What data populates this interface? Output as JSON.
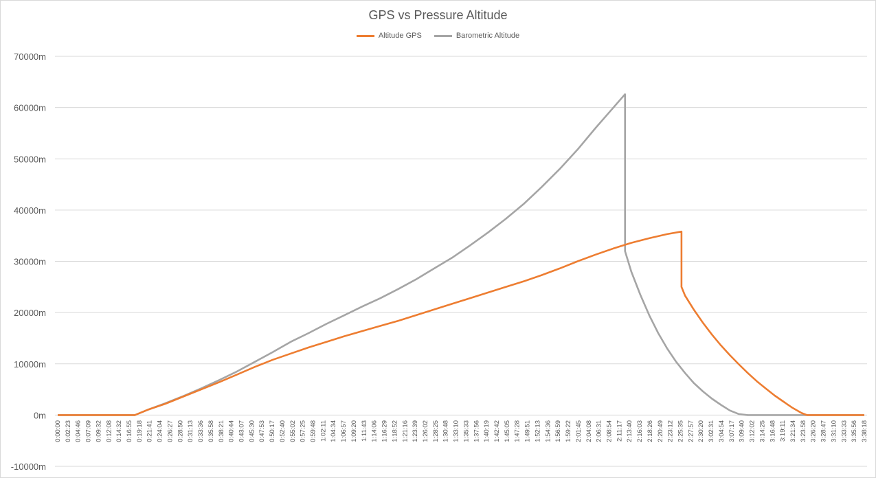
{
  "chart_data": {
    "type": "line",
    "title": "GPS vs Pressure Altitude",
    "xlabel": "",
    "ylabel": "",
    "ylim": [
      -10000,
      70000
    ],
    "y_ticks": [
      "-10000m",
      "0m",
      "10000m",
      "20000m",
      "30000m",
      "40000m",
      "50000m",
      "60000m",
      "70000m"
    ],
    "y_tick_values": [
      -10000,
      0,
      10000,
      20000,
      30000,
      40000,
      50000,
      60000,
      70000
    ],
    "grid": true,
    "legend_position": "top",
    "x_tick_labels": [
      "0:00:00",
      "0:02:23",
      "0:04:46",
      "0:07:09",
      "0:09:32",
      "0:12:08",
      "0:14:32",
      "0:16:55",
      "0:19:18",
      "0:21:41",
      "0:24:04",
      "0:26:27",
      "0:28:50",
      "0:31:13",
      "0:33:36",
      "0:35:58",
      "0:38:21",
      "0:40:44",
      "0:43:07",
      "0:45:30",
      "0:47:53",
      "0:50:17",
      "0:52:40",
      "0:55:02",
      "0:57:25",
      "0:59:48",
      "1:02:11",
      "1:04:34",
      "1:06:57",
      "1:09:20",
      "1:11:43",
      "1:14:06",
      "1:16:29",
      "1:18:52",
      "1:21:16",
      "1:23:39",
      "1:26:02",
      "1:28:25",
      "1:30:48",
      "1:33:10",
      "1:35:33",
      "1:37:56",
      "1:40:19",
      "1:42:42",
      "1:45:05",
      "1:47:28",
      "1:49:51",
      "1:52:13",
      "1:54:36",
      "1:56:59",
      "1:59:22",
      "2:01:45",
      "2:04:08",
      "2:06:31",
      "2:08:54",
      "2:11:17",
      "2:13:40",
      "2:16:03",
      "2:18:26",
      "2:20:49",
      "2:23:12",
      "2:25:35",
      "2:27:57",
      "2:30:20",
      "3:02:31",
      "3:04:54",
      "3:07:17",
      "3:09:40",
      "3:12:02",
      "3:14:25",
      "3:16:48",
      "3:19:11",
      "3:21:34",
      "3:23:58",
      "3:26:20",
      "3:28:47",
      "3:31:10",
      "3:33:33",
      "3:35:56",
      "3:38:18"
    ],
    "series": [
      {
        "name": "Altitude GPS",
        "color": "#ED7D31",
        "points": [
          [
            0,
            0
          ],
          [
            8.6,
            0
          ],
          [
            10,
            1000
          ],
          [
            12,
            2200
          ],
          [
            14,
            3600
          ],
          [
            16,
            5000
          ],
          [
            18,
            6400
          ],
          [
            20,
            7900
          ],
          [
            22,
            9400
          ],
          [
            24,
            10800
          ],
          [
            26,
            12000
          ],
          [
            28,
            13200
          ],
          [
            30,
            14300
          ],
          [
            32,
            15400
          ],
          [
            34,
            16400
          ],
          [
            36,
            17400
          ],
          [
            38,
            18400
          ],
          [
            40,
            19500
          ],
          [
            42,
            20600
          ],
          [
            44,
            21700
          ],
          [
            46,
            22800
          ],
          [
            48,
            23900
          ],
          [
            50,
            25000
          ],
          [
            52,
            26100
          ],
          [
            54,
            27300
          ],
          [
            56,
            28600
          ],
          [
            58,
            30000
          ],
          [
            60,
            31300
          ],
          [
            62,
            32500
          ],
          [
            64,
            33600
          ],
          [
            66,
            34500
          ],
          [
            68,
            35300
          ],
          [
            69.6,
            35800
          ],
          [
            69.6,
            25000
          ],
          [
            70,
            23300
          ],
          [
            71,
            20500
          ],
          [
            72,
            18000
          ],
          [
            73,
            15700
          ],
          [
            74,
            13600
          ],
          [
            75,
            11700
          ],
          [
            76,
            9900
          ],
          [
            77,
            8200
          ],
          [
            78,
            6600
          ],
          [
            79,
            5200
          ],
          [
            80,
            3800
          ],
          [
            81,
            2600
          ],
          [
            82,
            1400
          ],
          [
            83,
            400
          ],
          [
            83.6,
            0
          ],
          [
            84,
            0
          ],
          [
            90,
            0
          ]
        ]
      },
      {
        "name": "Barometric Altitude",
        "color": "#A5A5A5",
        "points": [
          [
            0,
            0
          ],
          [
            8.6,
            0
          ],
          [
            10,
            1000
          ],
          [
            12,
            2300
          ],
          [
            14,
            3700
          ],
          [
            16,
            5200
          ],
          [
            18,
            6800
          ],
          [
            20,
            8500
          ],
          [
            22,
            10400
          ],
          [
            24,
            12300
          ],
          [
            26,
            14300
          ],
          [
            28,
            16000
          ],
          [
            30,
            17800
          ],
          [
            32,
            19500
          ],
          [
            34,
            21200
          ],
          [
            36,
            22800
          ],
          [
            38,
            24600
          ],
          [
            40,
            26500
          ],
          [
            42,
            28600
          ],
          [
            44,
            30700
          ],
          [
            46,
            33100
          ],
          [
            48,
            35600
          ],
          [
            50,
            38300
          ],
          [
            52,
            41200
          ],
          [
            54,
            44500
          ],
          [
            56,
            48000
          ],
          [
            58,
            51800
          ],
          [
            60,
            56000
          ],
          [
            62,
            60000
          ],
          [
            63.3,
            62600
          ],
          [
            63.3,
            32000
          ],
          [
            64,
            28000
          ],
          [
            65,
            23500
          ],
          [
            66,
            19500
          ],
          [
            67,
            16000
          ],
          [
            68,
            13000
          ],
          [
            69,
            10400
          ],
          [
            70,
            8200
          ],
          [
            71,
            6200
          ],
          [
            72,
            4600
          ],
          [
            73,
            3200
          ],
          [
            74,
            2000
          ],
          [
            75,
            900
          ],
          [
            76,
            200
          ],
          [
            77,
            0
          ],
          [
            84,
            0
          ],
          [
            90,
            0
          ]
        ]
      }
    ]
  }
}
